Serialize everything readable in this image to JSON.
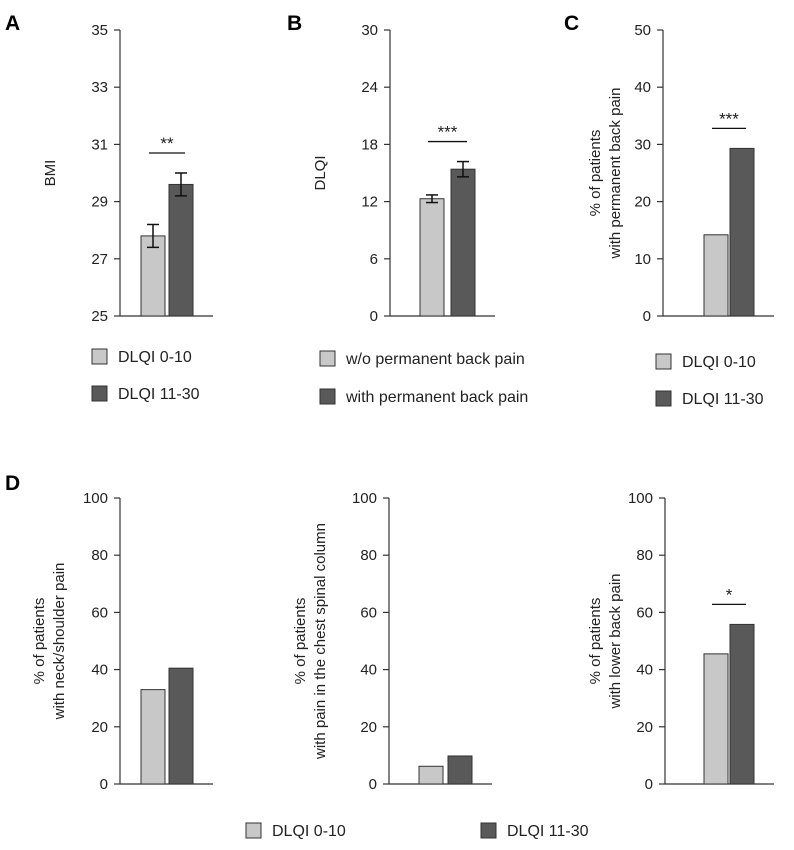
{
  "colors": {
    "light": "#c8c8c8",
    "dark": "#595959"
  },
  "panel_letters": [
    "A",
    "B",
    "C",
    "D"
  ],
  "chart_data": [
    {
      "panel": "A",
      "type": "bar",
      "ylabel": "BMI",
      "ylim": [
        25,
        35
      ],
      "yticks": [
        "25",
        "27",
        "29",
        "31",
        "33",
        "35"
      ],
      "values": [
        27.8,
        29.6
      ],
      "errors": [
        0.4,
        0.4
      ],
      "series": [
        {
          "name": "DLQI 0-10"
        },
        {
          "name": "DLQI 11-30"
        }
      ],
      "significance": "**"
    },
    {
      "panel": "B",
      "type": "bar",
      "ylabel": "DLQI",
      "ylim": [
        0,
        30
      ],
      "yticks": [
        "0",
        "6",
        "12",
        "18",
        "24",
        "30"
      ],
      "values": [
        12.3,
        15.4
      ],
      "errors": [
        0.4,
        0.8
      ],
      "series": [
        {
          "name": "w/o permanent back pain"
        },
        {
          "name": "with permanent back pain"
        }
      ],
      "significance": "***"
    },
    {
      "panel": "C",
      "type": "bar",
      "ylabel_lines": [
        "% of patients",
        "with permanent back pain"
      ],
      "ylim": [
        0,
        50
      ],
      "yticks": [
        "0",
        "10",
        "20",
        "30",
        "40",
        "50"
      ],
      "values": [
        14.2,
        29.3
      ],
      "series": [
        {
          "name": "DLQI 0-10"
        },
        {
          "name": "DLQI 11-30"
        }
      ],
      "significance": "***"
    },
    {
      "panel": "D1",
      "type": "bar",
      "ylabel_lines": [
        "% of patients",
        "with neck/shoulder pain"
      ],
      "ylim": [
        0,
        100
      ],
      "yticks": [
        "0",
        "20",
        "40",
        "60",
        "80",
        "100"
      ],
      "values": [
        33,
        40.5
      ],
      "series": [
        {
          "name": "DLQI 0-10"
        },
        {
          "name": "DLQI 11-30"
        }
      ]
    },
    {
      "panel": "D2",
      "type": "bar",
      "ylabel_lines": [
        "% of patients",
        "with pain in the chest spinal column"
      ],
      "ylim": [
        0,
        100
      ],
      "yticks": [
        "0",
        "20",
        "40",
        "60",
        "80",
        "100"
      ],
      "values": [
        6.2,
        9.8
      ],
      "series": [
        {
          "name": "DLQI 0-10"
        },
        {
          "name": "DLQI 11-30"
        }
      ]
    },
    {
      "panel": "D3",
      "type": "bar",
      "ylabel_lines": [
        "% of patients",
        "with lower back pain"
      ],
      "ylim": [
        0,
        100
      ],
      "yticks": [
        "0",
        "20",
        "40",
        "60",
        "80",
        "100"
      ],
      "values": [
        45.5,
        55.8
      ],
      "series": [
        {
          "name": "DLQI 0-10"
        },
        {
          "name": "DLQI 11-30"
        }
      ],
      "significance": "*"
    }
  ]
}
